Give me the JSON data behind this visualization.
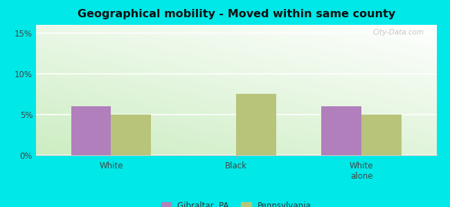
{
  "title": "Geographical mobility - Moved within same county",
  "categories": [
    "White",
    "Black",
    "White\nalone"
  ],
  "gibraltar_values": [
    6.0,
    0.0,
    6.0
  ],
  "pennsylvania_values": [
    5.0,
    7.5,
    5.0
  ],
  "gibraltar_color": "#b07fbc",
  "pennsylvania_color": "#b8c47a",
  "bg_color": "#00e8e8",
  "plot_bg_color": "#ffffff",
  "gradient_color_left": "#c8e8c0",
  "gradient_color_right": "#f0f8ee",
  "gradient_color_top": "#ffffff",
  "yticks": [
    0,
    5,
    10,
    15
  ],
  "ylim": [
    0,
    16
  ],
  "bar_width": 0.32,
  "legend_labels": [
    "Gibraltar, PA",
    "Pennsylvania"
  ],
  "watermark": "City-Data.com"
}
